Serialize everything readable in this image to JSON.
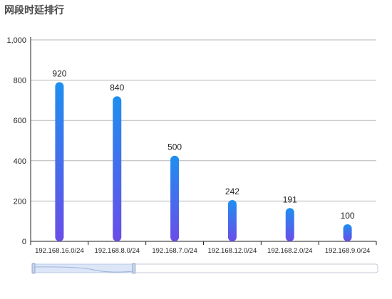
{
  "title": "网段时延排行",
  "chart_data": {
    "type": "bar",
    "title": "网段时延排行",
    "categories": [
      "192.168.16.0/24",
      "192.168.8.0/24",
      "192.168.7.0/24",
      "192.168.12.0/24",
      "192.168.2.0/24",
      "192.168.9.0/24"
    ],
    "series": [
      {
        "values": [
          920,
          840,
          500,
          242,
          191,
          100
        ],
        "display_values": [
          790,
          720,
          425,
          205,
          165,
          85
        ]
      }
    ],
    "data_labels": [
      "920",
      "840",
      "500",
      "242",
      "191",
      "100"
    ],
    "ylim": [
      0,
      1000
    ],
    "yticks": [
      0,
      200,
      400,
      600,
      800,
      1000
    ],
    "ytick_labels": [
      "0",
      "200",
      "400",
      "600",
      "800",
      "1,000"
    ],
    "grid": true,
    "bar_gradient": [
      "#1e8ff0",
      "#6a4de8"
    ],
    "slider": {
      "start": 0,
      "end": 0.295
    }
  }
}
